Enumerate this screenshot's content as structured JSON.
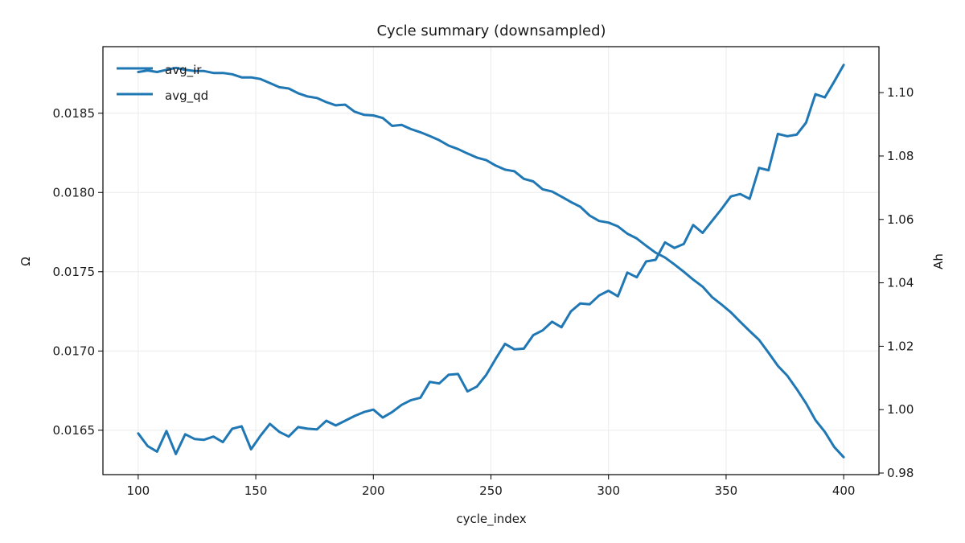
{
  "chart_data": {
    "type": "line",
    "title": "Cycle summary (downsampled)",
    "xlabel": "cycle_index",
    "ylabel_left": "Ω",
    "ylabel_right": "Ah",
    "xlim": [
      85,
      415
    ],
    "ylim_left": [
      0.01622,
      0.01892
    ],
    "ylim_right": [
      0.9795,
      1.1145
    ],
    "x_ticks": [
      100,
      150,
      200,
      250,
      300,
      350,
      400
    ],
    "y_left_ticks": [
      "0.0165",
      "0.0170",
      "0.0175",
      "0.0180",
      "0.0185"
    ],
    "y_right_ticks": [
      "0.98",
      "1.00",
      "1.02",
      "1.04",
      "1.06",
      "1.08",
      "1.10"
    ],
    "grid": true,
    "legend": {
      "placement": "top-left",
      "entries": [
        "avg_ir",
        "avg_qd"
      ]
    },
    "colors": {
      "series": "#1f77b4",
      "grid": "#ebebeb",
      "axis": "#000000"
    },
    "series": [
      {
        "name": "avg_ir",
        "axis": "left",
        "x": [
          100,
          104,
          108,
          112,
          116,
          120,
          124,
          128,
          132,
          136,
          140,
          144,
          148,
          152,
          156,
          160,
          164,
          168,
          172,
          176,
          180,
          184,
          188,
          192,
          196,
          200,
          204,
          208,
          212,
          216,
          220,
          224,
          228,
          232,
          236,
          240,
          244,
          248,
          252,
          256,
          260,
          264,
          268,
          272,
          276,
          280,
          284,
          288,
          292,
          296,
          300,
          304,
          308,
          312,
          316,
          320,
          324,
          328,
          332,
          336,
          340,
          344,
          348,
          352,
          356,
          360,
          364,
          368,
          372,
          376,
          380,
          384,
          388,
          392,
          396,
          400
        ],
        "y": [
          0.01648,
          0.0164,
          0.016365,
          0.016495,
          0.01635,
          0.016475,
          0.016445,
          0.01644,
          0.01646,
          0.016425,
          0.01651,
          0.016525,
          0.01638,
          0.016465,
          0.01654,
          0.01649,
          0.01646,
          0.01652,
          0.01651,
          0.016505,
          0.01656,
          0.01653,
          0.01656,
          0.01659,
          0.016615,
          0.01663,
          0.01658,
          0.016615,
          0.01666,
          0.01669,
          0.016705,
          0.016805,
          0.016795,
          0.01685,
          0.016855,
          0.016745,
          0.016775,
          0.01685,
          0.01695,
          0.017045,
          0.01701,
          0.017015,
          0.0171,
          0.01713,
          0.017185,
          0.01715,
          0.01725,
          0.0173,
          0.017295,
          0.01735,
          0.01738,
          0.017345,
          0.017495,
          0.017465,
          0.017565,
          0.017575,
          0.017685,
          0.01765,
          0.017675,
          0.017795,
          0.017745,
          0.01782,
          0.017895,
          0.017975,
          0.01799,
          0.01796,
          0.018155,
          0.01814,
          0.01837,
          0.018355,
          0.018365,
          0.01844,
          0.01862,
          0.0186,
          0.0187,
          0.018805
        ]
      },
      {
        "name": "avg_qd",
        "axis": "right",
        "x": [
          100,
          104,
          108,
          112,
          116,
          120,
          124,
          128,
          132,
          136,
          140,
          144,
          148,
          152,
          156,
          160,
          164,
          168,
          172,
          176,
          180,
          184,
          188,
          192,
          196,
          200,
          204,
          208,
          212,
          216,
          220,
          224,
          228,
          232,
          236,
          240,
          244,
          248,
          252,
          256,
          260,
          264,
          268,
          272,
          276,
          280,
          284,
          288,
          292,
          296,
          300,
          304,
          308,
          312,
          316,
          320,
          324,
          328,
          332,
          336,
          340,
          344,
          348,
          352,
          356,
          360,
          364,
          368,
          372,
          376,
          380,
          384,
          388,
          392,
          396,
          400
        ],
        "y": [
          1.1065,
          1.107,
          1.1065,
          1.1072,
          1.1078,
          1.1072,
          1.1068,
          1.1068,
          1.1062,
          1.1062,
          1.1058,
          1.1048,
          1.1048,
          1.1043,
          1.103,
          1.1017,
          1.1013,
          1.0998,
          1.0988,
          1.0983,
          1.097,
          1.096,
          1.0962,
          1.094,
          1.093,
          1.0928,
          1.092,
          1.0895,
          1.0898,
          1.0885,
          1.0875,
          1.0863,
          1.085,
          1.0833,
          1.0822,
          1.0808,
          1.0795,
          1.0787,
          1.077,
          1.0757,
          1.0752,
          1.0728,
          1.072,
          1.0695,
          1.0688,
          1.0672,
          1.0655,
          1.064,
          1.0612,
          1.0595,
          1.059,
          1.0578,
          1.0555,
          1.054,
          1.0517,
          1.0495,
          1.048,
          1.0458,
          1.0435,
          1.041,
          1.0388,
          1.0355,
          1.0332,
          1.0307,
          1.0277,
          1.0248,
          1.022,
          1.018,
          1.0138,
          1.0107,
          1.0065,
          1.002,
          0.9967,
          0.993,
          0.9882,
          0.985
        ]
      }
    ]
  }
}
